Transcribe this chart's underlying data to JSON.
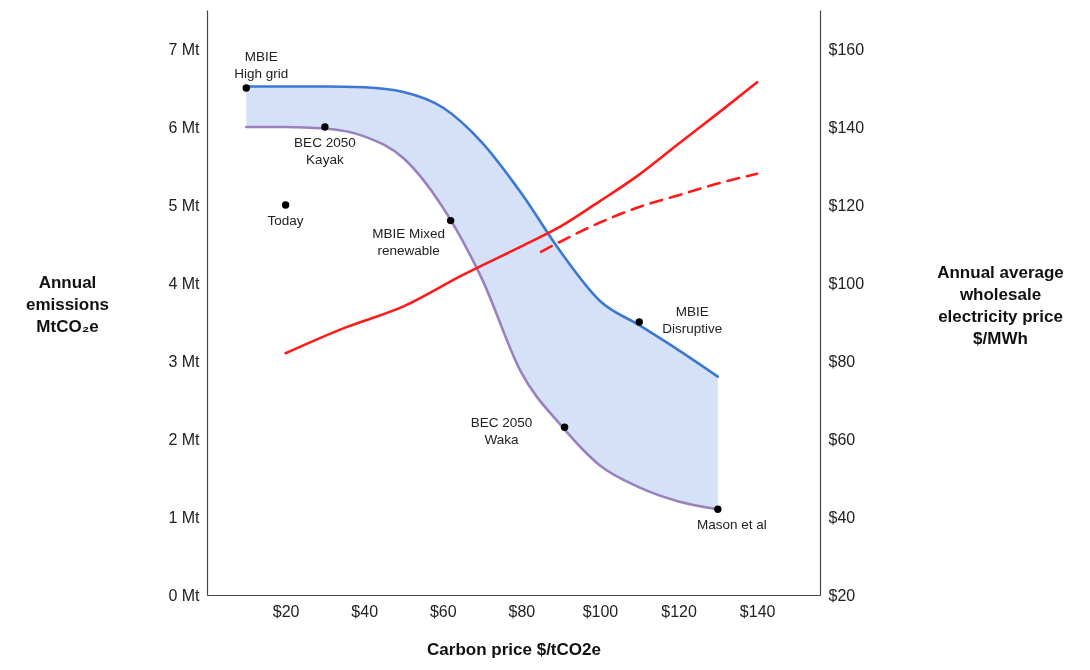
{
  "chart_data": {
    "type": "line",
    "xlabel": "Carbon price $/tCO2e",
    "ylabel": "Annual\nemissions\nMtCO₂e",
    "y2label": "Annual average\nwholesale\nelectricity  price\n$/MWh",
    "xlim": [
      0,
      156
    ],
    "xticks": [
      {
        "value": 20,
        "label": "$20"
      },
      {
        "value": 40,
        "label": "$40"
      },
      {
        "value": 60,
        "label": "$60"
      },
      {
        "value": 80,
        "label": "$80"
      },
      {
        "value": 100,
        "label": "$100"
      },
      {
        "value": 120,
        "label": "$120"
      },
      {
        "value": 140,
        "label": "$140"
      }
    ],
    "ylim": [
      0,
      7.5
    ],
    "yticks": [
      {
        "value": 0,
        "label": "0 Mt"
      },
      {
        "value": 1,
        "label": "1 Mt"
      },
      {
        "value": 2,
        "label": "2 Mt"
      },
      {
        "value": 3,
        "label": "3 Mt"
      },
      {
        "value": 4,
        "label": "4 Mt"
      },
      {
        "value": 5,
        "label": "5 Mt"
      },
      {
        "value": 6,
        "label": "6 Mt"
      },
      {
        "value": 7,
        "label": "7 Mt"
      }
    ],
    "y2lim": [
      20,
      170
    ],
    "y2ticks": [
      {
        "value": 20,
        "label": "$20"
      },
      {
        "value": 40,
        "label": "$40"
      },
      {
        "value": 60,
        "label": "$60"
      },
      {
        "value": 80,
        "label": "$80"
      },
      {
        "value": 100,
        "label": "$100"
      },
      {
        "value": 120,
        "label": "$120"
      },
      {
        "value": 140,
        "label": "$140"
      },
      {
        "value": 160,
        "label": "$160"
      }
    ],
    "grid": false,
    "series": [
      {
        "color": "#3b78d4",
        "x": [
          10,
          20,
          30,
          40,
          50,
          60,
          70,
          80,
          90,
          100,
          110,
          120,
          130
        ],
        "values": [
          6.52,
          6.52,
          6.52,
          6.51,
          6.45,
          6.25,
          5.8,
          5.15,
          4.4,
          3.77,
          3.46,
          3.14,
          2.8
        ],
        "lower": [
          6.0,
          6.0,
          5.98,
          5.88,
          5.6,
          4.97,
          4.05,
          2.85,
          2.18,
          1.66,
          1.38,
          1.2,
          1.1
        ],
        "upper": [
          6.52,
          6.52,
          6.52,
          6.51,
          6.45,
          6.25,
          5.8,
          5.15,
          4.4,
          3.77,
          3.46,
          3.14,
          2.8
        ]
      },
      {
        "color": "#9b80bf",
        "x": [
          10,
          20,
          30,
          40,
          50,
          60,
          70,
          80,
          90,
          100,
          110,
          120,
          130
        ],
        "values": [
          6.0,
          6.0,
          5.98,
          5.88,
          5.6,
          4.97,
          4.05,
          2.85,
          2.18,
          1.66,
          1.38,
          1.2,
          1.1
        ]
      },
      {
        "type": "line",
        "color": "#ff1a1a",
        "axis": "y2",
        "line_style": "solid",
        "x": [
          20,
          35,
          50,
          65,
          80,
          90,
          100,
          110,
          120,
          130,
          140
        ],
        "values": [
          82,
          88.5,
          94,
          102,
          109.4,
          114.5,
          121,
          127.8,
          135.7,
          143.5,
          151.5
        ]
      },
      {
        "type": "line",
        "color": "#ff1a1a",
        "axis": "y2",
        "line_style": "dashed",
        "x": [
          85,
          100,
          110,
          120,
          130,
          140
        ],
        "values": [
          108,
          115.5,
          119.5,
          122.5,
          125.5,
          128
        ]
      },
      {
        "type": "scatter",
        "marker": "circle",
        "color": "#000000",
        "x": [
          10,
          30,
          20,
          62,
          110,
          91,
          130
        ],
        "values": [
          6.5,
          6.0,
          5.0,
          4.8,
          3.5,
          2.15,
          1.1
        ]
      }
    ],
    "annotations": [
      {
        "text": "MBIE\nHigh grid",
        "x": 10,
        "y": 6.5
      },
      {
        "text": "BEC 2050\nKayak",
        "x": 30,
        "y": 6.0
      },
      {
        "text": "Today",
        "x": 20,
        "y": 5.0
      },
      {
        "text": "MBIE Mixed\nrenewable",
        "x": 62,
        "y": 4.8
      },
      {
        "text": "MBIE\nDisruptive",
        "x": 110,
        "y": 3.5
      },
      {
        "text": "BEC 2050\nWaka",
        "x": 91,
        "y": 2.15
      },
      {
        "text": "Mason et al",
        "x": 130,
        "y": 1.1
      }
    ]
  }
}
